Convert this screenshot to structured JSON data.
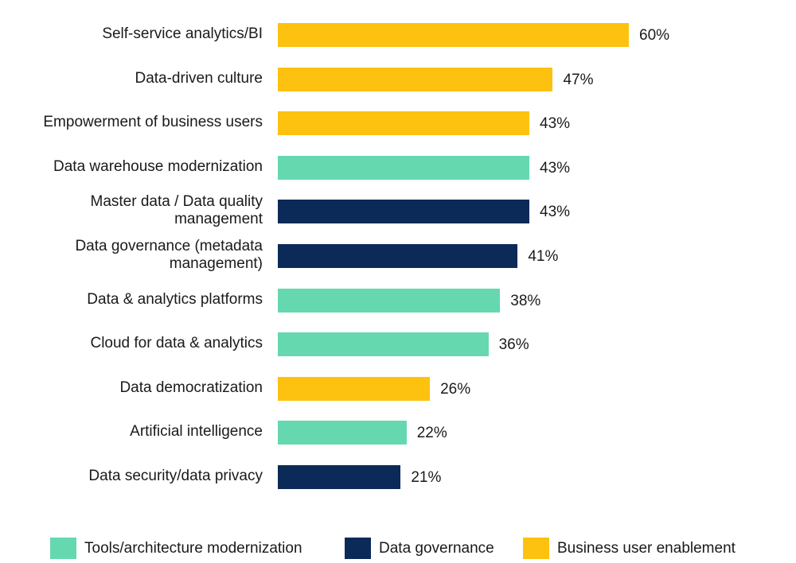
{
  "chart_data": {
    "type": "bar",
    "orientation": "horizontal",
    "categories": [
      "Self-service analytics/BI",
      "Data-driven culture",
      "Empowerment of business users",
      "Data warehouse modernization",
      "Master data / Data quality management",
      "Data governance (metadata management)",
      "Data & analytics platforms",
      "Cloud for data & analytics",
      "Data democratization",
      "Artificial intelligence",
      "Data security/data privacy"
    ],
    "label_lines": [
      [
        "Self-service analytics/BI"
      ],
      [
        "Data-driven culture"
      ],
      [
        "Empowerment of business users"
      ],
      [
        "Data warehouse modernization"
      ],
      [
        "Master data / Data quality",
        "management"
      ],
      [
        "Data governance (metadata",
        "management)"
      ],
      [
        "Data & analytics platforms"
      ],
      [
        "Cloud for data & analytics"
      ],
      [
        "Data democratization"
      ],
      [
        "Artificial intelligence"
      ],
      [
        "Data security/data privacy"
      ]
    ],
    "values": [
      60,
      47,
      43,
      43,
      43,
      41,
      38,
      36,
      26,
      22,
      21
    ],
    "data_labels": [
      "60%",
      "47%",
      "43%",
      "43%",
      "43%",
      "41%",
      "38%",
      "36%",
      "26%",
      "22%",
      "21%"
    ],
    "groups": [
      2,
      2,
      2,
      0,
      1,
      1,
      0,
      0,
      2,
      0,
      1
    ],
    "legend": [
      {
        "name": "Tools/architecture modernization",
        "color": "#66D8B0"
      },
      {
        "name": "Data governance",
        "color": "#0B2A57"
      },
      {
        "name": "Business user enablement",
        "color": "#FDC20F"
      }
    ],
    "legend_position": "bottom",
    "unit": "%",
    "xlim": [
      0,
      60
    ],
    "grid": false,
    "axes_visible": false
  }
}
